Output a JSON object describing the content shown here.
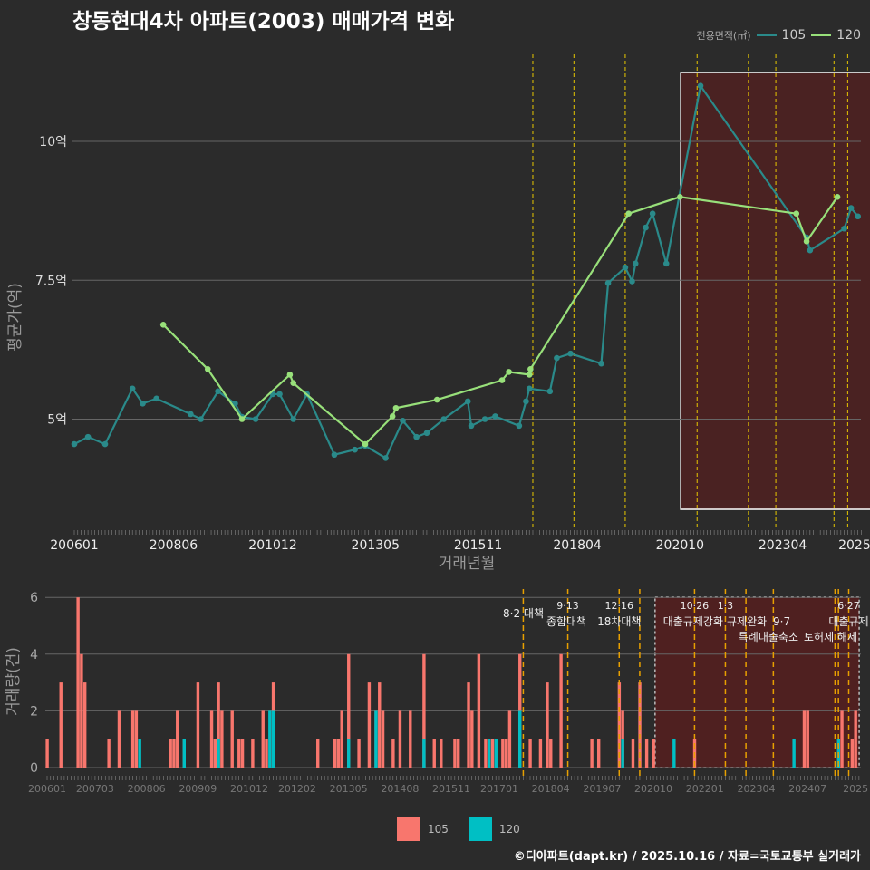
{
  "title": "창동현대4차 아파트(2003) 매매가격 변화",
  "legend_top": {
    "title": "전용면적(㎡)",
    "items": [
      "105",
      "120"
    ]
  },
  "legend_bottom": {
    "items": [
      "105",
      "120"
    ]
  },
  "credit": "©디아파트(dapt.kr) / 2025.10.16 / 자료=국토교통부 실거래가",
  "colors": {
    "s105_line": "#2a8a8a",
    "s120_line": "#98e07a",
    "bar105": "#f8766d",
    "bar120": "#00bfc4",
    "policy": "#e8c800"
  },
  "chart_data": [
    {
      "type": "line",
      "title": "창동현대4차 아파트(2003) 매매가격 변화",
      "xlabel": "거래년월",
      "ylabel": "평균가(억)",
      "x_unit": "months since 200601",
      "ylim": [
        3,
        11.7
      ],
      "yticks": [
        {
          "v": 5,
          "label": "5억"
        },
        {
          "v": 7.5,
          "label": "7.5억"
        },
        {
          "v": 10,
          "label": "10억"
        }
      ],
      "xticks": [
        {
          "m": 0,
          "label": "200601"
        },
        {
          "m": 29,
          "label": "200806"
        },
        {
          "m": 58,
          "label": "201012"
        },
        {
          "m": 88,
          "label": "201305"
        },
        {
          "m": 118,
          "label": "201511"
        },
        {
          "m": 147,
          "label": "201804"
        },
        {
          "m": 177,
          "label": "202010"
        },
        {
          "m": 207,
          "label": "202304"
        },
        {
          "m": 228,
          "label": "2025"
        }
      ],
      "series": [
        {
          "name": "105",
          "points": [
            [
              0,
              4.55
            ],
            [
              4,
              4.68
            ],
            [
              9,
              4.55
            ],
            [
              17,
              5.55
            ],
            [
              20,
              5.28
            ],
            [
              24,
              5.37
            ],
            [
              34,
              5.09
            ],
            [
              37,
              5.0
            ],
            [
              42,
              5.5
            ],
            [
              47,
              5.28
            ],
            [
              49,
              5.04
            ],
            [
              53,
              5.0
            ],
            [
              58,
              5.45
            ],
            [
              60,
              5.45
            ],
            [
              64,
              5.0
            ],
            [
              68,
              5.45
            ],
            [
              76,
              4.36
            ],
            [
              82,
              4.45
            ],
            [
              85,
              4.52
            ],
            [
              91,
              4.3
            ],
            [
              96,
              4.97
            ],
            [
              100,
              4.68
            ],
            [
              103,
              4.75
            ],
            [
              108,
              5.0
            ],
            [
              115,
              5.32
            ],
            [
              116,
              4.88
            ],
            [
              120,
              5.0
            ],
            [
              123,
              5.05
            ],
            [
              130,
              4.88
            ],
            [
              132,
              5.32
            ],
            [
              133,
              5.55
            ],
            [
              139,
              5.5
            ],
            [
              141,
              6.1
            ],
            [
              145,
              6.18
            ],
            [
              154,
              6.0
            ],
            [
              156,
              7.45
            ],
            [
              161,
              7.73
            ],
            [
              163,
              7.48
            ],
            [
              164,
              7.8
            ],
            [
              167,
              8.45
            ],
            [
              169,
              8.7
            ],
            [
              173,
              7.8
            ],
            [
              183,
              11.0
            ],
            [
              214,
              8.27
            ],
            [
              215,
              8.04
            ],
            [
              225,
              8.43
            ],
            [
              227,
              8.8
            ],
            [
              229,
              8.65
            ]
          ]
        },
        {
          "name": "120",
          "points": [
            [
              26,
              6.7
            ],
            [
              39,
              5.9
            ],
            [
              49,
              5.0
            ],
            [
              63,
              5.8
            ],
            [
              64,
              5.65
            ],
            [
              85,
              4.55
            ],
            [
              93,
              5.05
            ],
            [
              94,
              5.2
            ],
            [
              106,
              5.35
            ],
            [
              125,
              5.7
            ],
            [
              127,
              5.85
            ],
            [
              133,
              5.8
            ],
            [
              133.3,
              5.9
            ],
            [
              162,
              8.7
            ],
            [
              177,
              9.0
            ],
            [
              211,
              8.7
            ],
            [
              214,
              8.2
            ],
            [
              223,
              9.0
            ]
          ]
        }
      ],
      "policy_months": [
        134,
        146,
        161,
        182,
        197,
        205,
        222,
        226
      ],
      "highlight": {
        "from": 178,
        "to": 236
      }
    },
    {
      "type": "bar",
      "ylabel": "거래량(건)",
      "ylim": [
        0,
        6
      ],
      "yticks": [
        0,
        2,
        4,
        6
      ],
      "xticks": [
        {
          "m": 0,
          "label": "200601"
        },
        {
          "m": 14,
          "label": "200703"
        },
        {
          "m": 29,
          "label": "200806"
        },
        {
          "m": 44,
          "label": "200909"
        },
        {
          "m": 59,
          "label": "201012"
        },
        {
          "m": 73,
          "label": "201202"
        },
        {
          "m": 88,
          "label": "201305"
        },
        {
          "m": 103,
          "label": "201408"
        },
        {
          "m": 118,
          "label": "201511"
        },
        {
          "m": 132,
          "label": "201701"
        },
        {
          "m": 147,
          "label": "201804"
        },
        {
          "m": 162,
          "label": "201907"
        },
        {
          "m": 177,
          "label": "202010"
        },
        {
          "m": 192,
          "label": "202201"
        },
        {
          "m": 207,
          "label": "202304"
        },
        {
          "m": 222,
          "label": "202407"
        },
        {
          "m": 236,
          "label": "2025"
        }
      ],
      "series": [
        {
          "name": "105",
          "bars": [
            [
              0,
              1
            ],
            [
              4,
              3
            ],
            [
              9,
              6
            ],
            [
              10,
              4
            ],
            [
              11,
              3
            ],
            [
              18,
              1
            ],
            [
              21,
              2
            ],
            [
              25,
              2
            ],
            [
              26,
              2
            ],
            [
              36,
              1
            ],
            [
              37,
              1
            ],
            [
              38,
              2
            ],
            [
              40,
              1
            ],
            [
              44,
              3
            ],
            [
              48,
              2
            ],
            [
              49,
              1
            ],
            [
              50,
              3
            ],
            [
              51,
              2
            ],
            [
              54,
              2
            ],
            [
              56,
              1
            ],
            [
              57,
              1
            ],
            [
              60,
              1
            ],
            [
              63,
              2
            ],
            [
              64,
              1
            ],
            [
              66,
              3
            ],
            [
              79,
              1
            ],
            [
              84,
              1
            ],
            [
              85,
              1
            ],
            [
              86,
              2
            ],
            [
              88,
              4
            ],
            [
              91,
              1
            ],
            [
              94,
              3
            ],
            [
              96,
              2
            ],
            [
              97,
              3
            ],
            [
              98,
              2
            ],
            [
              101,
              1
            ],
            [
              103,
              2
            ],
            [
              106,
              2
            ],
            [
              110,
              4
            ],
            [
              113,
              1
            ],
            [
              115,
              1
            ],
            [
              119,
              1
            ],
            [
              120,
              1
            ],
            [
              123,
              3
            ],
            [
              124,
              2
            ],
            [
              126,
              4
            ],
            [
              128,
              1
            ],
            [
              130,
              1
            ],
            [
              133,
              1
            ],
            [
              134,
              1
            ],
            [
              135,
              2
            ],
            [
              138,
              4
            ],
            [
              141,
              1
            ],
            [
              144,
              1
            ],
            [
              146,
              3
            ],
            [
              147,
              1
            ],
            [
              150,
              4
            ],
            [
              159,
              1
            ],
            [
              161,
              1
            ],
            [
              167,
              3
            ],
            [
              168,
              2
            ],
            [
              171,
              1
            ],
            [
              173,
              3
            ],
            [
              175,
              1
            ],
            [
              177,
              1
            ],
            [
              189,
              1
            ],
            [
              221,
              2
            ],
            [
              222,
              2
            ],
            [
              232,
              2
            ],
            [
              235,
              1
            ],
            [
              236,
              2
            ]
          ]
        },
        {
          "name": "120",
          "bars": [
            [
              27,
              1
            ],
            [
              40,
              1
            ],
            [
              50,
              1
            ],
            [
              65,
              2
            ],
            [
              66,
              2
            ],
            [
              88,
              1
            ],
            [
              96,
              2
            ],
            [
              110,
              1
            ],
            [
              129,
              1
            ],
            [
              131,
              1
            ],
            [
              138,
              2
            ],
            [
              168,
              1
            ],
            [
              183,
              1
            ],
            [
              218,
              1
            ],
            [
              231,
              1
            ]
          ]
        }
      ],
      "policy_lines": [
        139,
        152,
        167,
        173,
        189,
        198,
        204,
        212,
        230,
        231,
        234
      ],
      "annotations": [
        {
          "m": 139,
          "line1": "",
          "line2": "8·2 대책"
        },
        {
          "m": 152,
          "line1": "9·13",
          "line2": "종합대책"
        },
        {
          "m": 167,
          "line1": "12·16",
          "line2": "18차대책"
        },
        {
          "m": 189,
          "line1": "10·26",
          "line2": "대출규제강화"
        },
        {
          "m": 198,
          "line1": "1·3",
          "line2": "규제완화"
        },
        {
          "m": 212,
          "line1": "",
          "line2": "9·7",
          "line3": "특례대출축소"
        },
        {
          "m": 230,
          "line1": "",
          "line2": "",
          "line3": "토허제 해제"
        },
        {
          "m": 234,
          "line1": "6·27",
          "line2": "대출규제"
        }
      ],
      "highlight": {
        "from": 178,
        "to": 236
      }
    }
  ]
}
